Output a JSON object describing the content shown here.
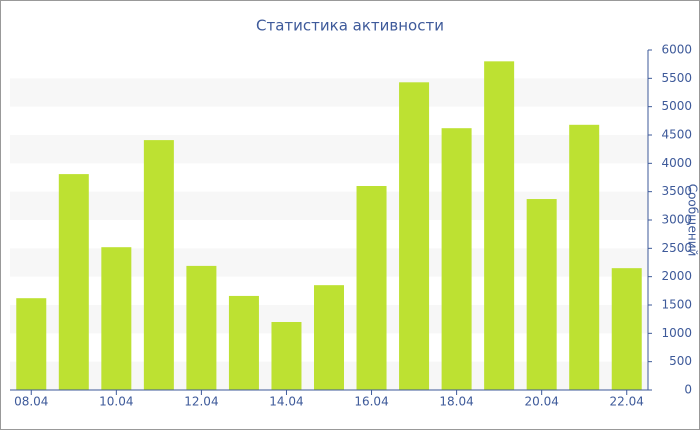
{
  "chart_data": {
    "type": "bar",
    "title": "Статистика активности",
    "y_label": "Сообщений",
    "categories": [
      "08.04",
      null,
      "10.04",
      null,
      "12.04",
      null,
      "14.04",
      null,
      "16.04",
      null,
      "18.04",
      null,
      "20.04",
      null,
      "22.04"
    ],
    "values": [
      1620,
      3810,
      2520,
      4410,
      2190,
      1660,
      1200,
      1850,
      3600,
      5430,
      4620,
      5800,
      3370,
      4680,
      2150
    ],
    "color": "#bde132",
    "ylim": [
      0,
      6000
    ],
    "yticks": [
      0,
      500,
      1000,
      1500,
      2000,
      2500,
      3000,
      3500,
      4000,
      4500,
      5000,
      5500,
      6000
    ],
    "grid": true,
    "y_axis_side": "right"
  }
}
